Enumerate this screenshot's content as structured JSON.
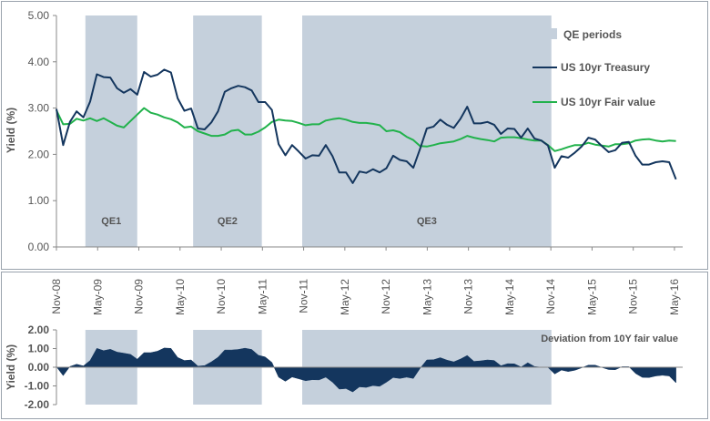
{
  "colors": {
    "qe_shade": "#c5d0dc",
    "treasury": "#14365e",
    "fair_value": "#22b24c",
    "deviation_fill": "#14365e",
    "border": "#9aa3ad",
    "axis": "#888888",
    "text": "#555555"
  },
  "chart_data": [
    {
      "type": "line",
      "ylabel": "Yield (%)",
      "ylim": [
        0,
        5
      ],
      "y_ticks": [
        "5.00",
        "4.00",
        "3.00",
        "2.00",
        "1.00",
        "0.00"
      ],
      "x_ticks": [
        "Nov-08",
        "May-09",
        "Nov-09",
        "May-10",
        "Nov-10",
        "May-11",
        "Nov-11",
        "May-12",
        "Nov-12",
        "May-13",
        "Nov-13",
        "May-14",
        "Nov-14",
        "May-15",
        "Nov-15",
        "May-16"
      ],
      "x_index_range": [
        0,
        93
      ],
      "legend_position": "top-right",
      "qe_periods": [
        {
          "label": "QE1",
          "start_index": 4.3,
          "end_index": 12
        },
        {
          "label": "QE2",
          "start_index": 20.3,
          "end_index": 30.5
        },
        {
          "label": "QE3",
          "start_index": 36.5,
          "end_index": 73.5
        }
      ],
      "legend": {
        "qe": "QE periods",
        "treasury": "US 10yr Treasury",
        "fair": "US 10yr Fair value"
      },
      "series": [
        {
          "name": "US 10yr Treasury",
          "values": [
            2.98,
            2.2,
            2.7,
            2.93,
            2.8,
            3.14,
            3.73,
            3.67,
            3.66,
            3.43,
            3.33,
            3.41,
            3.29,
            3.78,
            3.68,
            3.72,
            3.83,
            3.77,
            3.21,
            2.94,
            2.99,
            2.56,
            2.54,
            2.69,
            2.93,
            3.35,
            3.43,
            3.48,
            3.45,
            3.38,
            3.13,
            3.13,
            2.96,
            2.22,
            1.98,
            2.2,
            2.06,
            1.91,
            1.98,
            1.97,
            2.2,
            1.96,
            1.61,
            1.61,
            1.38,
            1.63,
            1.6,
            1.68,
            1.61,
            1.7,
            1.97,
            1.88,
            1.85,
            1.71,
            2.12,
            2.56,
            2.6,
            2.75,
            2.64,
            2.57,
            2.77,
            3.03,
            2.67,
            2.67,
            2.7,
            2.64,
            2.44,
            2.56,
            2.55,
            2.36,
            2.56,
            2.34,
            2.3,
            2.19,
            1.71,
            1.96,
            1.93,
            2.04,
            2.17,
            2.36,
            2.32,
            2.18,
            2.05,
            2.09,
            2.25,
            2.27,
            1.97,
            1.78,
            1.78,
            1.83,
            1.85,
            1.83,
            1.46
          ]
        },
        {
          "name": "US 10yr Fair value",
          "values": [
            2.95,
            2.65,
            2.66,
            2.77,
            2.73,
            2.78,
            2.72,
            2.78,
            2.7,
            2.62,
            2.58,
            2.72,
            2.86,
            3.0,
            2.9,
            2.86,
            2.8,
            2.76,
            2.69,
            2.58,
            2.6,
            2.5,
            2.45,
            2.4,
            2.4,
            2.43,
            2.51,
            2.53,
            2.43,
            2.43,
            2.49,
            2.58,
            2.7,
            2.75,
            2.73,
            2.72,
            2.68,
            2.63,
            2.65,
            2.65,
            2.73,
            2.76,
            2.78,
            2.75,
            2.7,
            2.68,
            2.68,
            2.66,
            2.63,
            2.5,
            2.52,
            2.48,
            2.38,
            2.31,
            2.18,
            2.17,
            2.2,
            2.24,
            2.26,
            2.28,
            2.33,
            2.4,
            2.36,
            2.33,
            2.31,
            2.28,
            2.36,
            2.37,
            2.37,
            2.35,
            2.32,
            2.3,
            2.3,
            2.2,
            2.07,
            2.11,
            2.16,
            2.2,
            2.2,
            2.25,
            2.21,
            2.19,
            2.17,
            2.22,
            2.22,
            2.24,
            2.3,
            2.32,
            2.33,
            2.3,
            2.28,
            2.3,
            2.29
          ]
        }
      ]
    },
    {
      "type": "area",
      "title": "Deviation from 10Y fair value",
      "ylabel": "Yield (%)",
      "ylim": [
        -2,
        2
      ],
      "y_ticks": [
        "2.00",
        "1.00",
        "0.00",
        "-1.00",
        "-2.00"
      ],
      "x_index_range": [
        0,
        93
      ],
      "series": [
        {
          "name": "Deviation from 10Y fair value",
          "values": [
            0.03,
            -0.45,
            0.04,
            0.16,
            0.07,
            0.36,
            1.01,
            0.89,
            0.96,
            0.81,
            0.75,
            0.69,
            0.43,
            0.78,
            0.78,
            0.86,
            1.03,
            1.01,
            0.52,
            0.36,
            0.39,
            0.06,
            0.09,
            0.29,
            0.53,
            0.92,
            0.92,
            0.95,
            1.02,
            0.95,
            0.64,
            0.55,
            0.26,
            -0.53,
            -0.75,
            -0.52,
            -0.62,
            -0.72,
            -0.67,
            -0.68,
            -0.53,
            -0.8,
            -1.17,
            -1.14,
            -1.32,
            -1.05,
            -1.08,
            -0.98,
            -1.02,
            -0.8,
            -0.55,
            -0.6,
            -0.53,
            -0.6,
            -0.06,
            0.39,
            0.4,
            0.51,
            0.38,
            0.29,
            0.44,
            0.63,
            0.31,
            0.34,
            0.39,
            0.36,
            0.08,
            0.19,
            0.18,
            0.01,
            0.24,
            0.04,
            0.0,
            -0.01,
            -0.36,
            -0.15,
            -0.23,
            -0.16,
            -0.03,
            0.11,
            0.11,
            -0.01,
            -0.12,
            -0.13,
            0.03,
            0.03,
            -0.33,
            -0.54,
            -0.55,
            -0.47,
            -0.43,
            -0.47,
            -0.83
          ]
        }
      ]
    }
  ]
}
